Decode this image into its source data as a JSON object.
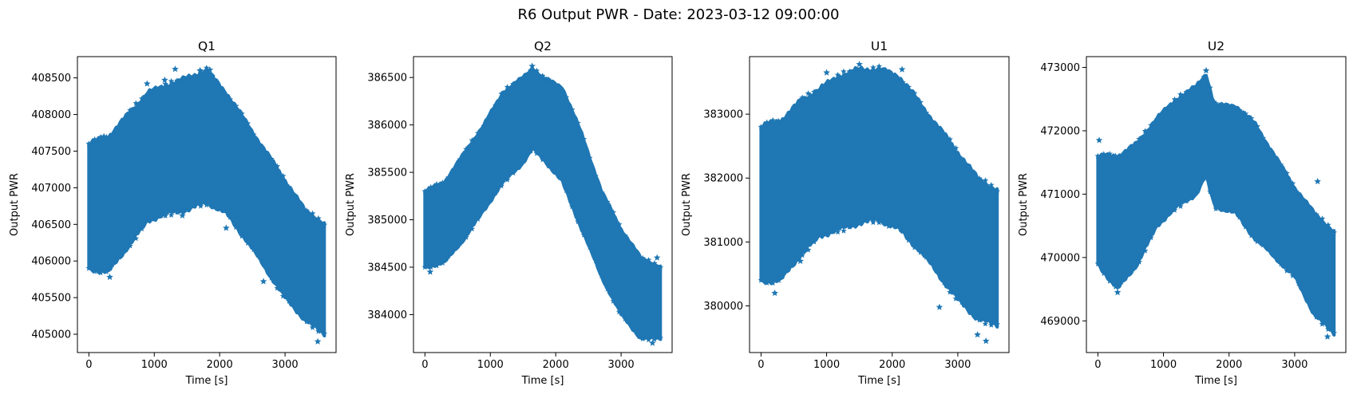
{
  "figure": {
    "title": "R6 Output PWR - Date: 2023-03-12 09:00:00"
  },
  "chart_data": [
    {
      "type": "scatter",
      "title": "Q1",
      "xlabel": "Time [s]",
      "ylabel": "Output PWR",
      "xlim": [
        -175,
        3780
      ],
      "ylim": [
        404750,
        408790
      ],
      "xticks": [
        0,
        1000,
        2000,
        3000
      ],
      "xtick_labels": [
        "0",
        "1000",
        "2000",
        "3000"
      ],
      "yticks": [
        405000,
        405500,
        406000,
        406500,
        407000,
        407500,
        408000,
        408500
      ],
      "ytick_labels": [
        "405000",
        "405500",
        "406000",
        "406500",
        "407000",
        "407500",
        "408000",
        "408500"
      ],
      "marker": "star",
      "color": "#1f77b4",
      "series": [
        {
          "band_t": [
            0,
            300,
            600,
            900,
            1200,
            1500,
            1800,
            2100,
            2400,
            2700,
            3000,
            3300,
            3600
          ],
          "band_upper": [
            407600,
            407700,
            408000,
            408300,
            408400,
            408500,
            408600,
            408300,
            407900,
            407500,
            407100,
            406700,
            406500
          ],
          "band_lower": [
            405900,
            405850,
            406200,
            406550,
            406650,
            406700,
            406800,
            406650,
            406300,
            405900,
            405500,
            405200,
            405000
          ],
          "outliers": [
            [
              1320,
              408620
            ],
            [
              1700,
              408600
            ],
            [
              1850,
              408610
            ],
            [
              320,
              405780
            ],
            [
              2670,
              405720
            ],
            [
              2100,
              406450
            ],
            [
              1430,
              406620
            ],
            [
              230,
              407700
            ],
            [
              3500,
              404900
            ],
            [
              890,
              408420
            ],
            [
              1160,
              408470
            ]
          ]
        }
      ]
    },
    {
      "type": "scatter",
      "title": "Q2",
      "xlabel": "Time [s]",
      "ylabel": "Output PWR",
      "xlim": [
        -175,
        3780
      ],
      "ylim": [
        383600,
        386720
      ],
      "xticks": [
        0,
        1000,
        2000,
        3000
      ],
      "xtick_labels": [
        "0",
        "1000",
        "2000",
        "3000"
      ],
      "yticks": [
        384000,
        384500,
        385000,
        385500,
        386000,
        386500
      ],
      "ytick_labels": [
        "384000",
        "384500",
        "385000",
        "385500",
        "386000",
        "386500"
      ],
      "marker": "star",
      "color": "#1f77b4",
      "series": [
        {
          "band_t": [
            0,
            300,
            600,
            900,
            1200,
            1500,
            1650,
            1800,
            2100,
            2400,
            2700,
            3000,
            3300,
            3600
          ],
          "band_upper": [
            385300,
            385400,
            385700,
            386000,
            386350,
            386500,
            386600,
            386500,
            386400,
            385900,
            385300,
            384900,
            384600,
            384500
          ],
          "band_lower": [
            384500,
            384550,
            384800,
            385100,
            385400,
            385600,
            385750,
            385650,
            385400,
            384900,
            384400,
            384000,
            383750,
            383750
          ],
          "outliers": [
            [
              1640,
              386620
            ],
            [
              3480,
              383700
            ],
            [
              80,
              384450
            ],
            [
              3550,
              384600
            ]
          ]
        }
      ]
    },
    {
      "type": "scatter",
      "title": "U1",
      "xlabel": "Time [s]",
      "ylabel": "Output PWR",
      "xlim": [
        -175,
        3780
      ],
      "ylim": [
        379270,
        383900
      ],
      "xticks": [
        0,
        1000,
        2000,
        3000
      ],
      "xtick_labels": [
        "0",
        "1000",
        "2000",
        "3000"
      ],
      "yticks": [
        380000,
        381000,
        382000,
        383000
      ],
      "ytick_labels": [
        "380000",
        "381000",
        "382000",
        "383000"
      ],
      "marker": "star",
      "color": "#1f77b4",
      "series": [
        {
          "band_t": [
            0,
            300,
            600,
            900,
            1200,
            1500,
            1800,
            2100,
            2400,
            2700,
            3000,
            3300,
            3600
          ],
          "band_upper": [
            382800,
            382900,
            383200,
            383400,
            383600,
            383700,
            383700,
            383600,
            383200,
            382800,
            382400,
            382000,
            381800
          ],
          "band_lower": [
            380400,
            380400,
            380800,
            381100,
            381200,
            381300,
            381350,
            381200,
            380900,
            380500,
            380100,
            379800,
            379700
          ],
          "outliers": [
            [
              1500,
              383780
            ],
            [
              1000,
              383650
            ],
            [
              2150,
              383700
            ],
            [
              210,
              380200
            ],
            [
              600,
              380700
            ],
            [
              2720,
              379980
            ],
            [
              3430,
              379450
            ],
            [
              3300,
              379550
            ],
            [
              1950,
              381250
            ]
          ]
        }
      ]
    },
    {
      "type": "scatter",
      "title": "U2",
      "xlabel": "Time [s]",
      "ylabel": "Output PWR",
      "xlim": [
        -175,
        3780
      ],
      "ylim": [
        468500,
        473170
      ],
      "xticks": [
        0,
        1000,
        2000,
        3000
      ],
      "xtick_labels": [
        "0",
        "1000",
        "2000",
        "3000"
      ],
      "yticks": [
        469000,
        470000,
        471000,
        472000,
        473000
      ],
      "ytick_labels": [
        "469000",
        "470000",
        "471000",
        "472000",
        "473000"
      ],
      "marker": "star",
      "color": "#1f77b4",
      "series": [
        {
          "band_t": [
            0,
            300,
            600,
            900,
            1200,
            1500,
            1650,
            1750,
            1800,
            2100,
            2400,
            2700,
            3000,
            3300,
            3600
          ],
          "band_upper": [
            471600,
            471600,
            471800,
            472200,
            472500,
            472700,
            472900,
            472500,
            472400,
            472400,
            472100,
            471600,
            471100,
            470700,
            470400
          ],
          "band_lower": [
            469900,
            469500,
            469900,
            470500,
            470800,
            471000,
            471300,
            470900,
            470800,
            470700,
            470300,
            470000,
            469700,
            469100,
            468800
          ],
          "outliers": [
            [
              1650,
              472950
            ],
            [
              20,
              471850
            ],
            [
              300,
              469450
            ],
            [
              3350,
              471200
            ],
            [
              3500,
              468750
            ],
            [
              3550,
              470300
            ],
            [
              1100,
              472350
            ]
          ]
        }
      ]
    }
  ]
}
